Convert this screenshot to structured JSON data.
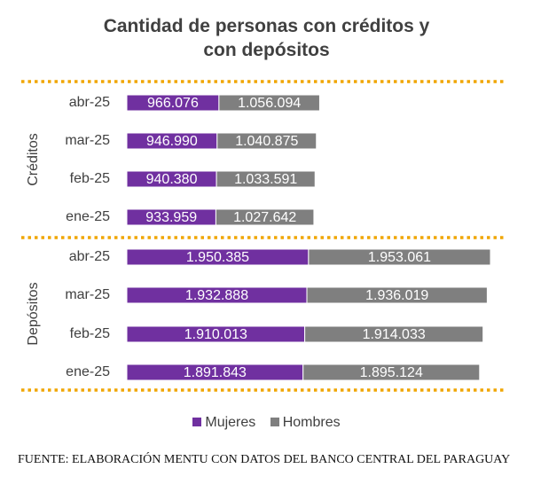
{
  "title_line1": "Cantidad de personas con créditos y",
  "title_line2": "con depósitos",
  "source": "FUENTE: ELABORACIÓN MENTU CON DATOS DEL BANCO CENTRAL DEL PARAGUAY",
  "colors": {
    "mujeres": "#7030a0",
    "hombres": "#7f7f7f",
    "divider": "#f0a500",
    "text": "#404040"
  },
  "chart_data": {
    "type": "bar",
    "orientation": "horizontal",
    "stacked": true,
    "legend": [
      "Mujeres",
      "Hombres"
    ],
    "legend_position": "bottom",
    "groups": [
      {
        "name": "Créditos",
        "categories": [
          "abr-25",
          "mar-25",
          "feb-25",
          "ene-25"
        ],
        "series": [
          {
            "name": "Mujeres",
            "values": [
              966076,
              946990,
              940380,
              933959
            ],
            "labels": [
              "966.076",
              "946.990",
              "940.380",
              "933.959"
            ]
          },
          {
            "name": "Hombres",
            "values": [
              1056094,
              1040875,
              1033591,
              1027642
            ],
            "labels": [
              "1.056.094",
              "1.040.875",
              "1.033.591",
              "1.027.642"
            ]
          }
        ]
      },
      {
        "name": "Depósitos",
        "categories": [
          "abr-25",
          "mar-25",
          "feb-25",
          "ene-25"
        ],
        "series": [
          {
            "name": "Mujeres",
            "values": [
              1950385,
              1932888,
              1910013,
              1891843
            ],
            "labels": [
              "1.950.385",
              "1.932.888",
              "1.910.013",
              "1.891.843"
            ]
          },
          {
            "name": "Hombres",
            "values": [
              1953061,
              1936019,
              1914033,
              1895124
            ],
            "labels": [
              "1.953.061",
              "1.936.019",
              "1.914.033",
              "1.895.124"
            ]
          }
        ]
      }
    ]
  }
}
